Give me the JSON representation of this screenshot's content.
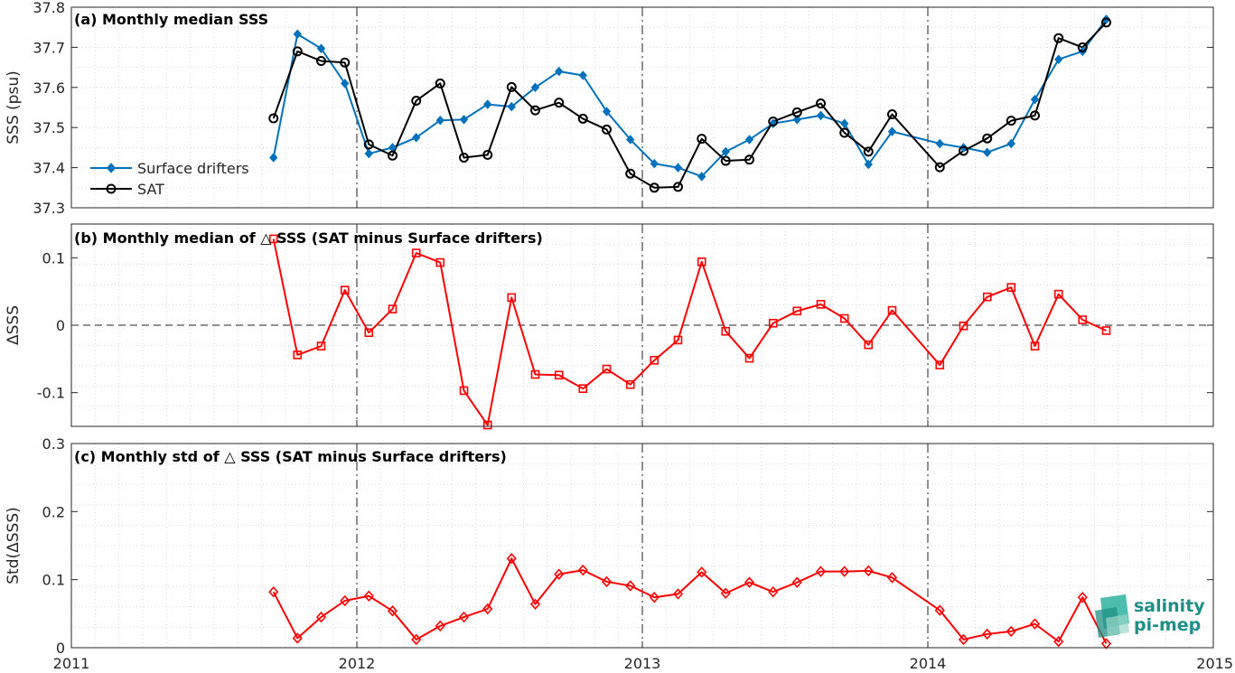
{
  "chart_data": [
    {
      "type": "line",
      "title": "(a) Monthly median SSS",
      "ylabel": "SSS (psu)",
      "xlim": [
        2011,
        2015
      ],
      "ylim": [
        37.3,
        37.8
      ],
      "yticks": [
        37.3,
        37.4,
        37.5,
        37.6,
        37.7,
        37.8
      ],
      "ytick_labels": [
        "37.3",
        "37.4",
        "37.5",
        "37.6",
        "37.7",
        "37.8"
      ],
      "grid": true,
      "legend_position": "left",
      "series": [
        {
          "name": "Surface drifters",
          "color": "#0072bd",
          "marker": "diamond-filled",
          "x": [
            2011.708,
            2011.792,
            2011.875,
            2011.958,
            2012.042,
            2012.125,
            2012.208,
            2012.292,
            2012.375,
            2012.458,
            2012.542,
            2012.625,
            2012.708,
            2012.792,
            2012.875,
            2012.958,
            2013.042,
            2013.125,
            2013.208,
            2013.292,
            2013.375,
            2013.458,
            2013.542,
            2013.625,
            2013.708,
            2013.792,
            2013.875,
            2014.042,
            2014.125,
            2014.208,
            2014.292,
            2014.375,
            2014.458,
            2014.542,
            2014.625
          ],
          "y": [
            37.425,
            37.733,
            37.697,
            37.61,
            37.435,
            37.45,
            37.475,
            37.518,
            37.52,
            37.558,
            37.552,
            37.6,
            37.64,
            37.63,
            37.54,
            37.47,
            37.41,
            37.4,
            37.378,
            37.44,
            37.47,
            37.51,
            37.52,
            37.53,
            37.51,
            37.408,
            37.49,
            37.46,
            37.45,
            37.438,
            37.46,
            37.57,
            37.67,
            37.69,
            37.77
          ]
        },
        {
          "name": "SAT",
          "color": "#000000",
          "marker": "circle-open",
          "x": [
            2011.708,
            2011.792,
            2011.875,
            2011.958,
            2012.042,
            2012.125,
            2012.208,
            2012.292,
            2012.375,
            2012.458,
            2012.542,
            2012.625,
            2012.708,
            2012.792,
            2012.875,
            2012.958,
            2013.042,
            2013.125,
            2013.208,
            2013.292,
            2013.375,
            2013.458,
            2013.542,
            2013.625,
            2013.708,
            2013.792,
            2013.875,
            2014.042,
            2014.125,
            2014.208,
            2014.292,
            2014.375,
            2014.458,
            2014.542,
            2014.625
          ],
          "y": [
            37.523,
            37.69,
            37.666,
            37.662,
            37.458,
            37.43,
            37.567,
            37.61,
            37.425,
            37.432,
            37.601,
            37.543,
            37.562,
            37.522,
            37.495,
            37.385,
            37.35,
            37.352,
            37.472,
            37.417,
            37.42,
            37.515,
            37.538,
            37.56,
            37.487,
            37.44,
            37.533,
            37.401,
            37.442,
            37.473,
            37.517,
            37.53,
            37.723,
            37.7,
            37.762
          ]
        }
      ]
    },
    {
      "type": "line",
      "title": "(b) Monthly median of △ SSS (SAT minus Surface drifters)",
      "ylabel": "ΔSSS",
      "xlim": [
        2011,
        2015
      ],
      "ylim": [
        -0.15,
        0.15
      ],
      "yticks": [
        -0.1,
        0,
        0.1
      ],
      "ytick_labels": [
        "-0.1",
        "0",
        "0.1"
      ],
      "grid": true,
      "zero_line": true,
      "series": [
        {
          "color": "#ff0000",
          "marker": "square-open",
          "x": [
            2011.708,
            2011.792,
            2011.875,
            2011.958,
            2012.042,
            2012.125,
            2012.208,
            2012.292,
            2012.375,
            2012.458,
            2012.542,
            2012.625,
            2012.708,
            2012.792,
            2012.875,
            2012.958,
            2013.042,
            2013.125,
            2013.208,
            2013.292,
            2013.375,
            2013.458,
            2013.542,
            2013.625,
            2013.708,
            2013.792,
            2013.875,
            2014.042,
            2014.125,
            2014.208,
            2014.292,
            2014.375,
            2014.458,
            2014.542,
            2014.625
          ],
          "y": [
            0.128,
            -0.044,
            -0.031,
            0.052,
            -0.011,
            0.024,
            0.107,
            0.093,
            -0.097,
            -0.148,
            0.041,
            -0.073,
            -0.074,
            -0.094,
            -0.065,
            -0.088,
            -0.052,
            -0.022,
            0.094,
            -0.009,
            -0.049,
            0.003,
            0.021,
            0.031,
            0.01,
            -0.029,
            0.022,
            -0.059,
            -0.001,
            0.042,
            0.056,
            -0.031,
            0.046,
            0.008,
            -0.008
          ]
        }
      ]
    },
    {
      "type": "line",
      "title": "(c) Monthly std of △ SSS (SAT minus Surface drifters)",
      "ylabel": "Std(ΔSSS)",
      "xlim": [
        2011,
        2015
      ],
      "ylim": [
        0,
        0.3
      ],
      "yticks": [
        0,
        0.1,
        0.2,
        0.3
      ],
      "ytick_labels": [
        "0",
        "0.1",
        "0.2",
        "0.3"
      ],
      "xticks": [
        2011,
        2012,
        2013,
        2014,
        2015
      ],
      "xtick_labels": [
        "2011",
        "2012",
        "2013",
        "2014",
        "2015"
      ],
      "grid": true,
      "series": [
        {
          "color": "#ff0000",
          "marker": "diamond-open",
          "x": [
            2011.708,
            2011.792,
            2011.875,
            2011.958,
            2012.042,
            2012.125,
            2012.208,
            2012.292,
            2012.375,
            2012.458,
            2012.542,
            2012.625,
            2012.708,
            2012.792,
            2012.875,
            2012.958,
            2013.042,
            2013.125,
            2013.208,
            2013.292,
            2013.375,
            2013.458,
            2013.542,
            2013.625,
            2013.708,
            2013.792,
            2013.875,
            2014.042,
            2014.125,
            2014.208,
            2014.292,
            2014.375,
            2014.458,
            2014.542,
            2014.625
          ],
          "y": [
            0.082,
            0.014,
            0.045,
            0.069,
            0.076,
            0.054,
            0.012,
            0.032,
            0.045,
            0.057,
            0.131,
            0.064,
            0.108,
            0.114,
            0.097,
            0.091,
            0.074,
            0.079,
            0.111,
            0.08,
            0.096,
            0.082,
            0.096,
            0.112,
            0.112,
            0.113,
            0.103,
            0.055,
            0.012,
            0.02,
            0.024,
            0.035,
            0.009,
            0.074,
            0.006
          ]
        }
      ]
    }
  ],
  "logo": {
    "line1": "salinity",
    "line2": "pi-mep",
    "color": "#1e8f86"
  }
}
